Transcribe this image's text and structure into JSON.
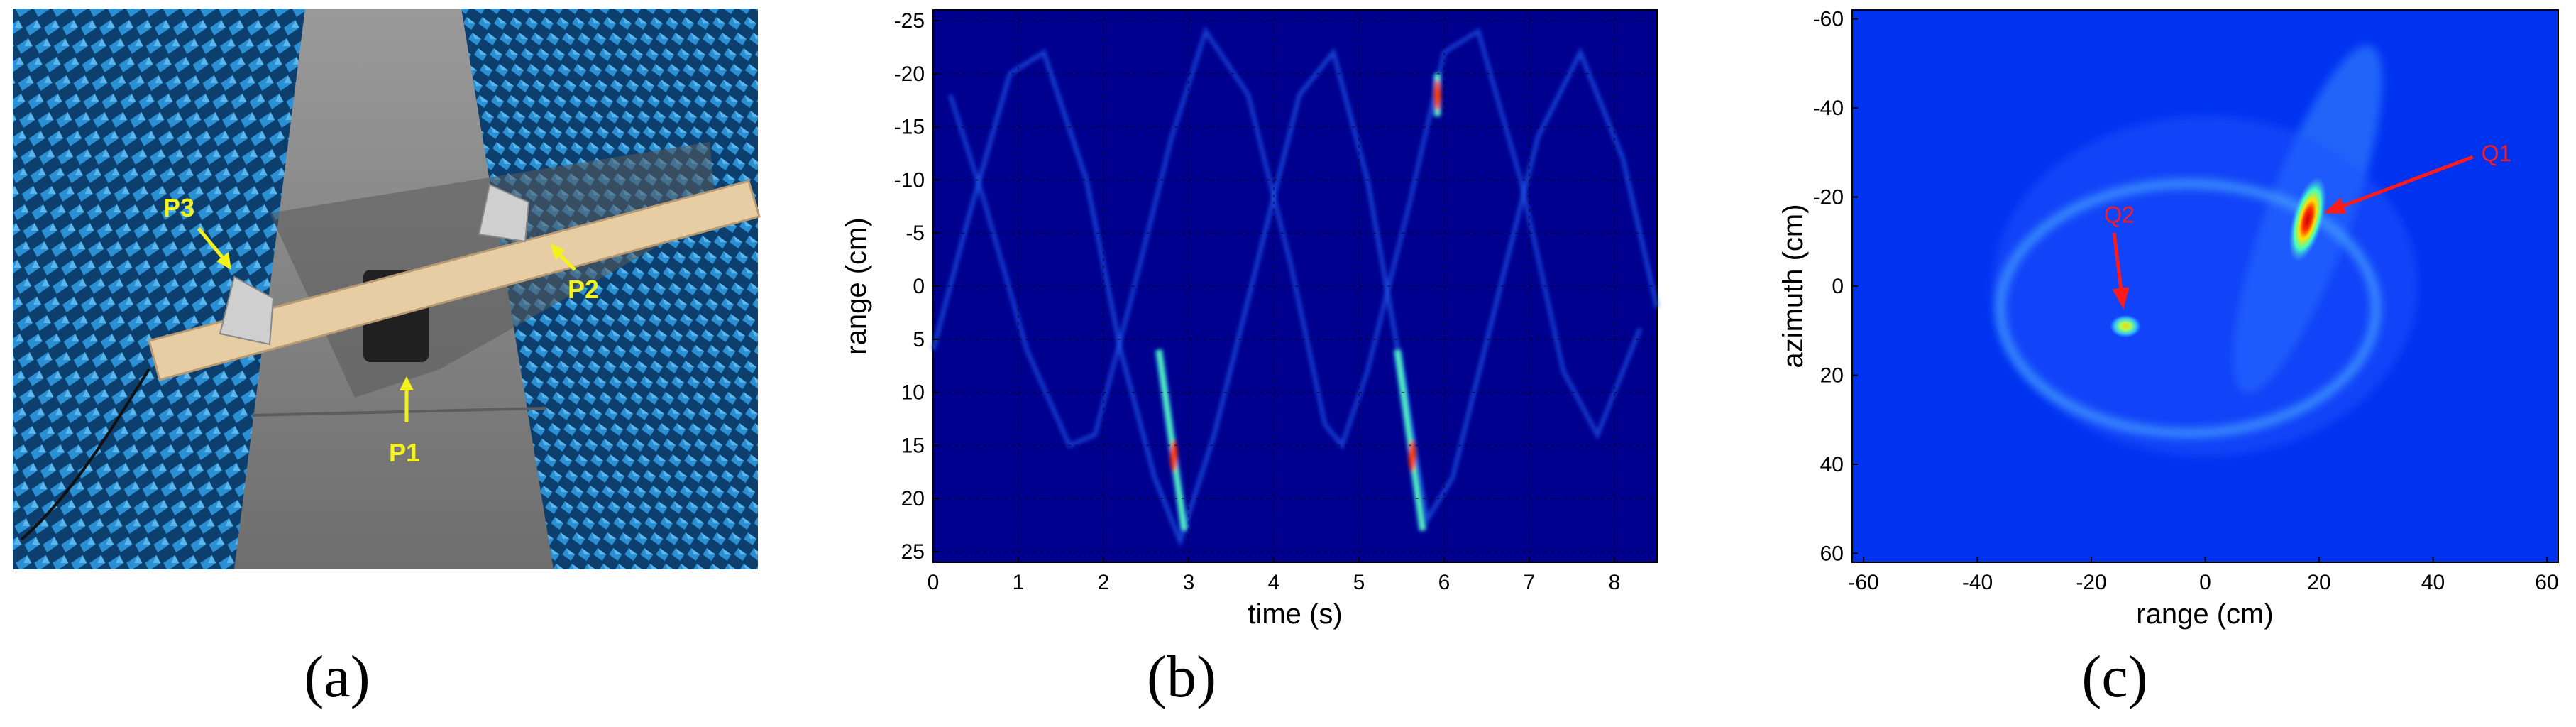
{
  "panels": {
    "a": {
      "caption": "(a)",
      "labels": {
        "p1": "P1",
        "p2": "P2",
        "p3": "P3"
      },
      "colors": {
        "absorber": "#1f7fc4",
        "floor": "#8f8f8f",
        "plank": "#e7cda4",
        "label": "#f5f21b"
      }
    },
    "b": {
      "caption": "(b)"
    },
    "c": {
      "caption": "(c)",
      "annotations": {
        "q1": "Q1",
        "q2": "Q2"
      },
      "annotation_color": "#ff1a1a"
    }
  },
  "chart_data": [
    {
      "type": "heatmap",
      "panel": "b",
      "xlabel": "time (s)",
      "ylabel": "range (cm)",
      "xlim": [
        0,
        8.5
      ],
      "ylim": [
        -26,
        26
      ],
      "y_inverted": true,
      "xticks": [
        "0",
        "1",
        "2",
        "3",
        "4",
        "5",
        "6",
        "7",
        "8"
      ],
      "yticks": [
        "-25",
        "-20",
        "-15",
        "-10",
        "-5",
        "0",
        "5",
        "10",
        "15",
        "20",
        "25"
      ],
      "grid": true,
      "colormap": "jet",
      "background": "#00008f",
      "tracks": [
        {
          "points": [
            [
              0.2,
              -18
            ],
            [
              0.6,
              -8
            ],
            [
              1.1,
              6
            ],
            [
              1.6,
              15
            ],
            [
              1.9,
              14
            ],
            [
              2.3,
              2
            ],
            [
              2.8,
              -14
            ],
            [
              3.2,
              -24
            ],
            [
              3.7,
              -18
            ],
            [
              4.2,
              -2
            ],
            [
              4.6,
              13
            ],
            [
              4.8,
              15
            ],
            [
              5.1,
              8
            ],
            [
              5.6,
              -8
            ],
            [
              6.0,
              -22
            ],
            [
              6.4,
              -24
            ],
            [
              6.9,
              -10
            ],
            [
              7.4,
              8
            ],
            [
              7.8,
              14
            ],
            [
              8.3,
              4
            ]
          ],
          "intensity": 0.22
        },
        {
          "points": [
            [
              0.0,
              6
            ],
            [
              0.4,
              -6
            ],
            [
              0.9,
              -20
            ],
            [
              1.3,
              -22
            ],
            [
              1.8,
              -10
            ],
            [
              2.2,
              6
            ],
            [
              2.6,
              18
            ],
            [
              2.9,
              24
            ],
            [
              3.3,
              14
            ],
            [
              3.8,
              -2
            ],
            [
              4.3,
              -18
            ],
            [
              4.7,
              -22
            ],
            [
              5.1,
              -10
            ],
            [
              5.5,
              8
            ],
            [
              5.8,
              22
            ],
            [
              6.1,
              18
            ],
            [
              6.6,
              2
            ],
            [
              7.1,
              -14
            ],
            [
              7.6,
              -22
            ],
            [
              8.1,
              -12
            ],
            [
              8.5,
              2
            ]
          ],
          "intensity": 0.25
        }
      ],
      "hotspots": [
        {
          "x0": 2.65,
          "y0": 6,
          "x1": 2.95,
          "y1": 23,
          "peak": 16
        },
        {
          "x0": 5.45,
          "y0": 6,
          "x1": 5.75,
          "y1": 23,
          "peak": 16
        },
        {
          "x0": 5.92,
          "y0": -20,
          "x1": 5.92,
          "y1": -16,
          "peak": -18
        }
      ]
    },
    {
      "type": "heatmap",
      "panel": "c",
      "xlabel": "range (cm)",
      "ylabel": "azimuth (cm)",
      "xlim": [
        -62,
        62
      ],
      "ylim": [
        -62,
        62
      ],
      "y_inverted": true,
      "xticks": [
        "-60",
        "-40",
        "-20",
        "0",
        "20",
        "40",
        "60"
      ],
      "yticks": [
        "-60",
        "-40",
        "-20",
        "0",
        "20",
        "40",
        "60"
      ],
      "grid": false,
      "colormap": "jet",
      "background": "#0033f0",
      "ring": {
        "cx": -3,
        "cy": 5,
        "rx": 33,
        "ry": 28
      },
      "points": [
        {
          "name": "Q1",
          "x": 18,
          "y": -15,
          "peak": 1.0,
          "arrow_from": [
            47,
            -29
          ]
        },
        {
          "name": "Q2",
          "x": -14,
          "y": 9,
          "peak": 0.75,
          "arrow_from": [
            -16,
            -12
          ]
        }
      ]
    }
  ]
}
